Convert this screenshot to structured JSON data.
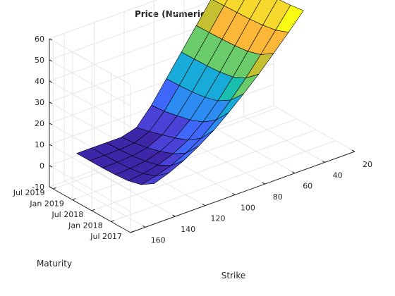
{
  "chart_data": {
    "type": "surface",
    "title": "Price (Numerical Integration)",
    "xlabel": "Strike",
    "ylabel": "Maturity",
    "zlabel": "",
    "x_ticks": [
      "20",
      "40",
      "60",
      "80",
      "100",
      "120",
      "140",
      "160"
    ],
    "x_tick_values": [
      20,
      40,
      60,
      80,
      100,
      120,
      140,
      160
    ],
    "y_ticks": [
      "Jul 2017",
      "Jan 2018",
      "Jul 2018",
      "Jan 2019",
      "Jul 2019"
    ],
    "y_tick_values": [
      0,
      0.5,
      1,
      1.5,
      2
    ],
    "z_ticks": [
      "-10",
      "0",
      "10",
      "20",
      "30",
      "40",
      "50",
      "60"
    ],
    "z_tick_values": [
      -10,
      0,
      10,
      20,
      30,
      40,
      50,
      60
    ],
    "xlim": [
      20,
      170
    ],
    "ylim": [
      0,
      2.1
    ],
    "zlim": [
      -10,
      60
    ],
    "grid": true,
    "colormap": [
      "#3e26a8",
      "#4a42d6",
      "#3f68fb",
      "#2c8cf1",
      "#18abd9",
      "#1bbfaf",
      "#6acc6a",
      "#c4c031",
      "#fbb838",
      "#f7d82c",
      "#f9fb15"
    ],
    "surface": {
      "strike": [
        50,
        60,
        70,
        80,
        90,
        100,
        110,
        120,
        130,
        140,
        150
      ],
      "maturity": [
        0.167,
        0.5,
        0.833,
        1.167,
        1.5,
        1.833,
        2.167
      ],
      "price": [
        [
          62.6,
          54.9,
          47.5,
          40.2,
          33.5,
          27.2,
          21.3,
          16.5,
          12.2,
          8.8,
          6.3
        ],
        [
          61.7,
          52.5,
          43.5,
          34.9,
          27.1,
          20.1,
          14.1,
          9.7,
          6.3,
          4.0,
          2.4
        ],
        [
          61.2,
          51.4,
          41.6,
          32.0,
          23.3,
          15.8,
          9.8,
          5.9,
          3.2,
          1.6,
          0.8
        ],
        [
          60.8,
          50.8,
          40.8,
          30.9,
          21.5,
          13.4,
          7.4,
          3.6,
          1.5,
          0.6,
          0.2
        ],
        [
          60.5,
          50.5,
          40.4,
          30.4,
          20.6,
          11.9,
          5.4,
          1.9,
          0.6,
          0.2,
          0.0
        ],
        [
          60.3,
          50.3,
          40.2,
          30.2,
          20.2,
          10.6,
          3.6,
          0.7,
          0.1,
          0.0,
          0.0
        ],
        [
          60.0,
          50.0,
          40.0,
          30.0,
          20.0,
          10.0,
          2.0,
          0.0,
          0.0,
          0.0,
          0.0
        ]
      ]
    }
  }
}
